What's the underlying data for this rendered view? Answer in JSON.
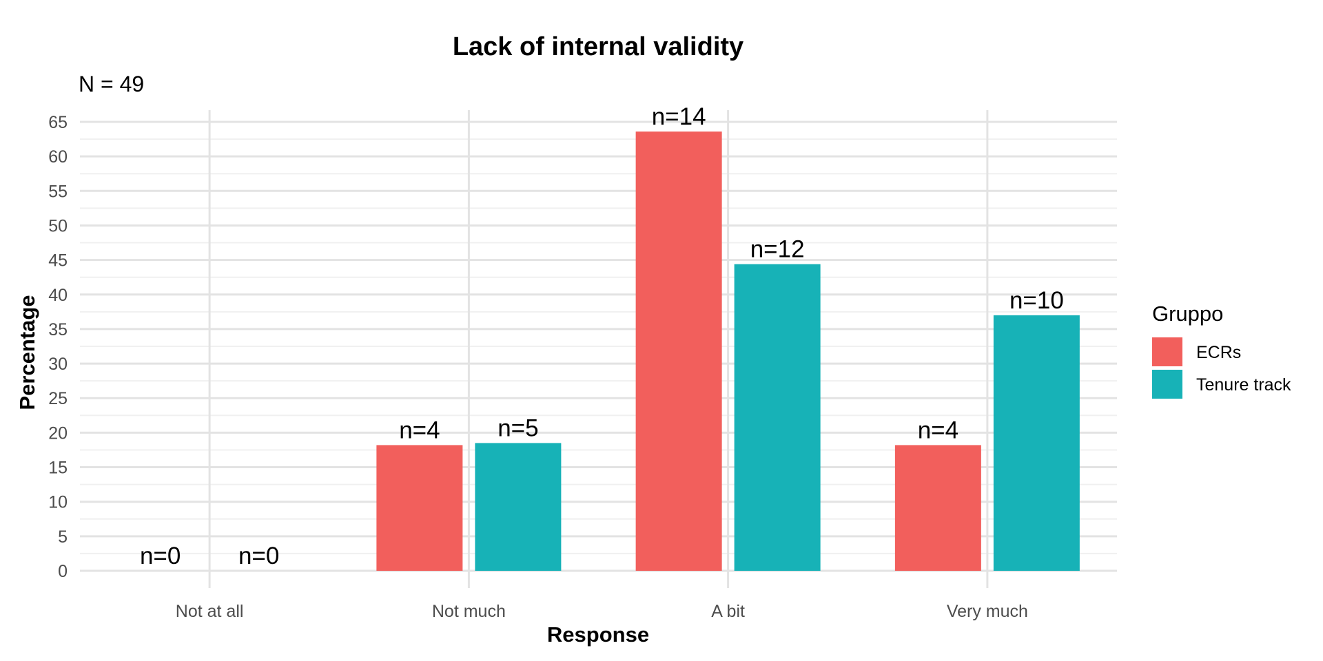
{
  "chart_data": {
    "type": "bar",
    "title": "Lack of internal validity",
    "subtitle": "N = 49",
    "xlabel": "Response",
    "ylabel": "Percentage",
    "categories": [
      "Not at all",
      "Not much",
      "A bit",
      "Very much"
    ],
    "ylim": [
      0,
      65
    ],
    "yticks": [
      0,
      5,
      10,
      15,
      20,
      25,
      30,
      35,
      40,
      45,
      50,
      55,
      60,
      65
    ],
    "grid": true,
    "legend": {
      "title": "Gruppo",
      "position": "right"
    },
    "series": [
      {
        "name": "ECRs",
        "color": "#F25F5C",
        "values": [
          0,
          18.2,
          63.6,
          18.2
        ],
        "labels": [
          "n=0",
          "n=4",
          "n=14",
          "n=4"
        ]
      },
      {
        "name": "Tenure track",
        "color": "#17B2B7",
        "values": [
          0,
          18.5,
          44.4,
          37.0
        ],
        "labels": [
          "n=0",
          "n=5",
          "n=12",
          "n=10"
        ]
      }
    ]
  }
}
